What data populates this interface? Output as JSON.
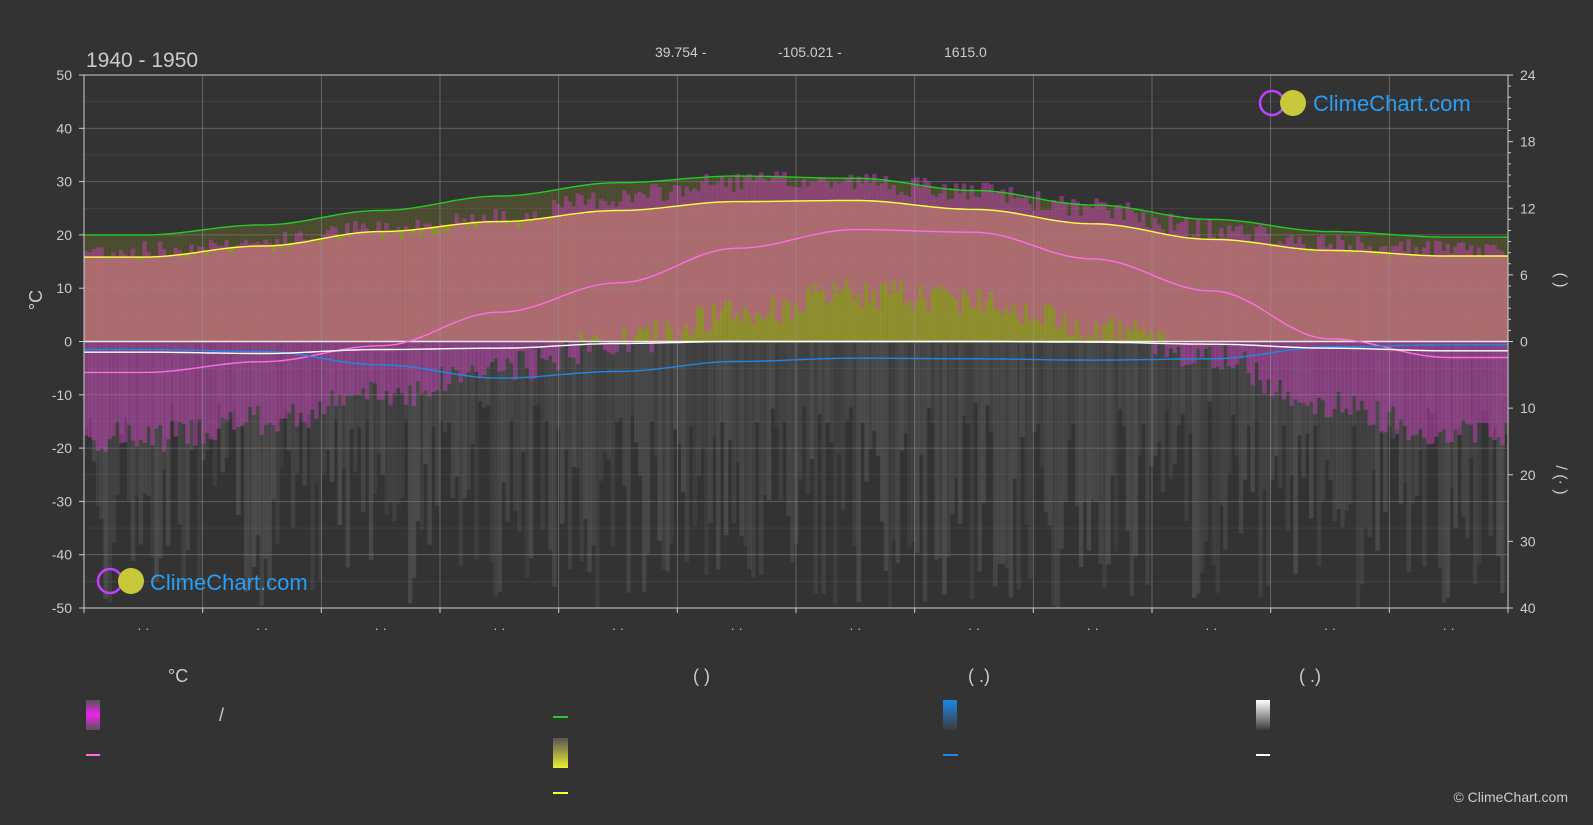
{
  "header": {
    "period": "1940 - 1950",
    "latitude": "39.754 -",
    "longitude": "-105.021 -",
    "elevation": "1615.0"
  },
  "logo_text": "ClimeChart.com",
  "copyright": "© ClimeChart.com",
  "axes": {
    "left_unit": "°C",
    "left_ticks": [
      "50",
      "40",
      "30",
      "20",
      "10",
      "0",
      "-10",
      "-20",
      "-30",
      "-40",
      "-50"
    ],
    "right_upper_ticks": [
      "24",
      "18",
      "12",
      "6",
      "0"
    ],
    "right_lower_ticks": [
      "10",
      "20",
      "30",
      "40"
    ],
    "right_upper_label": "(   )",
    "right_lower_label": "/   (·   )",
    "month_labels": [
      "· ·",
      "· ·",
      "· ·",
      "· ·",
      "· ·",
      "· ·",
      "· ·",
      "· ·",
      "· ·",
      "· ·",
      "· ·",
      "· ·"
    ]
  },
  "legend": {
    "col1_header": "°C",
    "col1_slash": "/",
    "col2_header": "(          )",
    "col3_header": "(   .)",
    "col4_header": "(   .)"
  },
  "colors": {
    "background": "#333333",
    "temp_band": "#d81fd8",
    "temp_mean": "#ff6ee0",
    "daylight": "#22cc22",
    "sunshine_band": "#b8b82a",
    "sunshine_line": "#ffff44",
    "rain": "#1e88e5",
    "snow": "#f0f0f0"
  },
  "chart_data": {
    "type": "area",
    "title": "1940 - 1950",
    "ylabel_left": "°C",
    "ylim_left": [
      -50,
      50
    ],
    "ylim_right_upper": [
      0,
      24
    ],
    "ylim_right_lower": [
      0,
      40
    ],
    "x_months": 12,
    "series": [
      {
        "key": "daylight_hours",
        "axis": "right_upper",
        "values": [
          9.6,
          10.5,
          11.8,
          13.1,
          14.3,
          14.9,
          14.7,
          13.6,
          12.3,
          11.0,
          9.9,
          9.4
        ]
      },
      {
        "key": "sunshine_hours",
        "axis": "right_upper",
        "values": [
          7.6,
          8.6,
          9.9,
          10.8,
          11.8,
          12.6,
          12.7,
          11.9,
          10.6,
          9.2,
          8.2,
          7.7
        ]
      },
      {
        "key": "mean_temperature",
        "axis": "left",
        "values": [
          -5.8,
          -3.8,
          -0.8,
          5.5,
          11.0,
          17.5,
          21.0,
          20.5,
          15.5,
          9.5,
          0.5,
          -3.0
        ]
      },
      {
        "key": "rain_mm",
        "axis": "right_lower",
        "values": [
          1.2,
          1.5,
          3.5,
          5.5,
          4.5,
          3.0,
          2.5,
          2.6,
          2.8,
          2.6,
          0.8,
          0.5
        ]
      },
      {
        "key": "snow_mm",
        "axis": "right_lower",
        "values": [
          1.6,
          1.8,
          1.2,
          1.0,
          0.3,
          0.0,
          0.0,
          0.0,
          0.1,
          0.4,
          1.0,
          1.4
        ]
      }
    ],
    "temp_band_max": [
      17,
      18.5,
      21,
      23,
      27,
      30,
      30,
      28,
      25,
      21,
      18,
      17
    ],
    "temp_band_min": [
      -18,
      -15,
      -10,
      -5,
      0,
      5,
      9,
      8,
      3,
      -3,
      -12,
      -17
    ]
  }
}
